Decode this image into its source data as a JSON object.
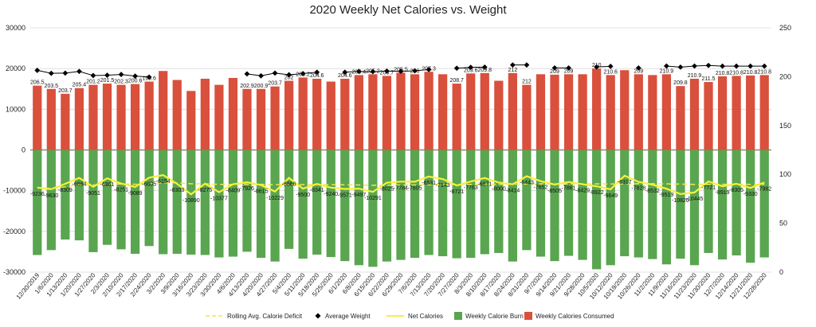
{
  "chart_data": {
    "type": "bar",
    "title": "2020 Weekly Net Calories vs. Weight",
    "y_left": {
      "min": -30000,
      "max": 30000,
      "step": 10000,
      "ticks": [
        "30000",
        "20000",
        "10000",
        "0",
        "-10000",
        "-20000",
        "-30000"
      ]
    },
    "y_right": {
      "min": 0,
      "max": 250,
      "step": 50,
      "ticks": [
        "250",
        "200",
        "150",
        "100",
        "50",
        "0"
      ]
    },
    "grid": true,
    "legend_position": "bottom",
    "colors": {
      "consumed": "#d9503c",
      "burn": "#5aa550",
      "net": "#f7f03a",
      "rolling": "#eee84a",
      "weight": "#000000",
      "zero": "#777777",
      "grid": "#d9d9d9"
    },
    "x_tick_labels": [
      "12/30/2019",
      "1/6/2020",
      "1/13/2020",
      "1/20/2020",
      "1/27/2020",
      "2/3/2020",
      "2/10/2020",
      "2/17/2020",
      "2/24/2020",
      "3/2/2020",
      "3/9/2020",
      "3/16/2020",
      "3/23/2020",
      "3/30/2020",
      "4/6/2020",
      "4/13/2020",
      "4/20/2020",
      "4/27/2020",
      "5/4/2020",
      "5/11/2020",
      "5/18/2020",
      "5/25/2020",
      "6/1/2020",
      "6/8/2020",
      "6/15/2020",
      "6/22/2020",
      "6/29/2020",
      "7/6/2020",
      "7/13/2020",
      "7/20/2020",
      "7/27/2020",
      "8/3/2020",
      "8/10/2020",
      "8/17/2020",
      "8/24/2020",
      "8/31/2020",
      "9/7/2020",
      "9/14/2020",
      "9/21/2020",
      "9/28/2020",
      "10/5/2020",
      "10/12/2020",
      "10/19/2020",
      "10/26/2020",
      "11/2/2020",
      "11/9/2020",
      "11/16/2020",
      "11/23/2020",
      "11/30/2020",
      "12/7/2020",
      "12/14/2020",
      "12/21/2020",
      "12/28/2020"
    ],
    "legend": [
      {
        "key": "rolling",
        "label": "Rolling Avg. Calorie Deficit"
      },
      {
        "key": "weight",
        "label": "Average Weight"
      },
      {
        "key": "net",
        "label": "Net Calories"
      },
      {
        "key": "burn",
        "label": "Weekly Calorie Burn"
      },
      {
        "key": "consumed",
        "label": "Weekly Calories Consumed"
      }
    ],
    "series": [
      {
        "name": "Weekly Calories Consumed",
        "axis": "left",
        "values": [
          15800,
          15000,
          13800,
          15200,
          16000,
          16300,
          16000,
          16200,
          16800,
          19400,
          17200,
          14500,
          17500,
          16000,
          17700,
          15000,
          15000,
          15600,
          17000,
          17800,
          17500,
          16800,
          17500,
          18400,
          18600,
          18200,
          19000,
          18600,
          19200,
          18600,
          16300,
          18800,
          18900,
          17000,
          18900,
          16000,
          18600,
          18500,
          18600,
          18600,
          20000,
          18400,
          19600,
          18600,
          18400,
          18600,
          15700,
          17500,
          16700,
          18100,
          18200,
          18300,
          18400
        ]
      },
      {
        "name": "Weekly Calorie Burn",
        "axis": "left",
        "values": [
          -25800,
          -24600,
          -22000,
          -22200,
          -25100,
          -23300,
          -24400,
          -25500,
          -23600,
          -25600,
          -25500,
          -25700,
          -25800,
          -26400,
          -26200,
          -25000,
          -26500,
          -27400,
          -24300,
          -26700,
          -25700,
          -26300,
          -27300,
          -28300,
          -28700,
          -27400,
          -27000,
          -26500,
          -25800,
          -26100,
          -26600,
          -26500,
          -25600,
          -25300,
          -27400,
          -24600,
          -26200,
          -27300,
          -26000,
          -27000,
          -29300,
          -28300,
          -26100,
          -26400,
          -26800,
          -28100,
          -26700,
          -28300,
          -25300,
          -26900,
          -25900,
          -27700,
          -26400
        ]
      },
      {
        "name": "Net Calories",
        "axis": "left",
        "values": [
          -9236,
          -9630,
          -8309,
          -6864,
          -9051,
          -6961,
          -8251,
          -9089,
          -6805,
          -6154,
          -8303,
          -10890,
          -8275,
          -10377,
          -8409,
          -7926,
          -8615,
          -10229,
          -6866,
          -9500,
          -8341,
          -9240,
          -9571,
          -9497,
          -10291,
          -8025,
          -7784,
          -7805,
          -6531,
          -7143,
          -8721,
          -7763,
          -6871,
          -8000,
          -8414,
          -6443,
          -7652,
          -8505,
          -7861,
          -8429,
          -8922,
          -9649,
          -6317,
          -7828,
          -8532,
          -9519,
          -10826,
          -10445,
          -7721,
          -8919,
          -8305,
          -9330,
          -7982
        ]
      },
      {
        "name": "Rolling Avg. Calorie Deficit",
        "axis": "left",
        "values": [
          -9236,
          -9433,
          -9058,
          -8510,
          -8618,
          -8352,
          -8337,
          -8431,
          -8251,
          -8048,
          -8070,
          -8307,
          -8305,
          -8453,
          -8450,
          -8417,
          -8427,
          -8529,
          -8443,
          -8496,
          -8489,
          -8525,
          -8568,
          -8609,
          -8677,
          -8655,
          -8628,
          -8604,
          -8534,
          -8495,
          -8502,
          -8479,
          -8430,
          -8418,
          -8418,
          -8342,
          -8324,
          -8329,
          -8317,
          -8320,
          -8335,
          -8369,
          -8298,
          -8286,
          -8293,
          -8324,
          -8386,
          -8436,
          -8421,
          -8432,
          -8429,
          -8447,
          -8438
        ]
      },
      {
        "name": "Average Weight",
        "axis": "right",
        "values": [
          206.5,
          203.5,
          203.7,
          205.4,
          201.2,
          201.5,
          202.3,
          200.6,
          199.6,
          null,
          null,
          null,
          null,
          null,
          null,
          202.9,
          200.9,
          203.7,
          202,
          203.2,
          204.6,
          null,
          204.6,
          205.4,
          205.2,
          205.7,
          205.5,
          206,
          207.3,
          null,
          208.7,
          209.6,
          209.8,
          null,
          212,
          212,
          null,
          209,
          209,
          null,
          210,
          210.6,
          null,
          209,
          null,
          210.9,
          209.8,
          210.9,
          211.5,
          210.8,
          210.8,
          210.8,
          210.8
        ]
      }
    ],
    "data_labels": {
      "consumed": [
        "206.5",
        "203.5",
        "203.7",
        "205.4",
        "201.2",
        "201.5",
        "202.3",
        "200.6",
        "199.6",
        "",
        "",
        "",
        "",
        "",
        "",
        "202.9",
        "200.9",
        "203.7",
        "202",
        "203.2",
        "204.6",
        "",
        "204.6",
        "205.4",
        "205.2",
        "205.7",
        "205.5",
        "206",
        "207.3",
        "",
        "208.7",
        "209.6",
        "209.8",
        "",
        "212",
        "212",
        "",
        "209",
        "209",
        "",
        "210",
        "210.6",
        "",
        "209",
        "",
        "210.9",
        "209.8",
        "210.9",
        "211.5",
        "210.8",
        "210.8",
        "210.8",
        "210.8"
      ],
      "net": [
        "-9236",
        "-9630",
        "-8309",
        "-6864",
        "-9051",
        "-6961",
        "-8251",
        "-9089",
        "-6805",
        "-6154",
        "-8303",
        "-10890",
        "-8275",
        "-10377",
        "-8409",
        "-7926",
        "-8615",
        "-10229",
        "-6866",
        "-9500",
        "-8341",
        "-9240",
        "-9571",
        "-9497",
        "-10291",
        "-8025",
        "-7784",
        "-7805",
        "-6531",
        "-7143",
        "-8721",
        "-7763",
        "-6871",
        "-8000",
        "-8414",
        "-6443",
        "-7652",
        "-8505",
        "-7861",
        "-8429",
        "-8922",
        "-9649",
        "-6317",
        "-7828",
        "-8532",
        "-9519",
        "-10826",
        "-10445",
        "-7721",
        "-8919",
        "-8305",
        "-9330",
        "-7982"
      ]
    }
  }
}
